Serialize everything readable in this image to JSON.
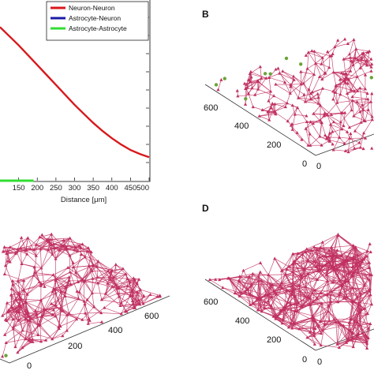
{
  "panels": {
    "b_label": "B",
    "d_label": "D"
  },
  "chart_data": [
    {
      "type": "line",
      "title": "",
      "xlabel": "Distance [μm]",
      "ylabel": "",
      "xlim": [
        100,
        500
      ],
      "x_ticks": [
        "150",
        "200",
        "250",
        "300",
        "350",
        "400",
        "450",
        "500"
      ],
      "legend": {
        "placement": "top-right",
        "entries": [
          {
            "name": "Neuron-Neuron",
            "color": "#d7191c"
          },
          {
            "name": "Astrocyte-Neuron",
            "color": "#1a1aa8"
          },
          {
            "name": "Astrocyte-Astrocyte",
            "color": "#33dd33"
          }
        ]
      },
      "series": [
        {
          "name": "Neuron-Neuron",
          "color": "#d7191c",
          "x": [
            100,
            125,
            150,
            175,
            200,
            225,
            250,
            275,
            300,
            325,
            350,
            375,
            400,
            425,
            450,
            475,
            500
          ],
          "y": [
            0.85,
            0.8,
            0.75,
            0.695,
            0.64,
            0.585,
            0.53,
            0.475,
            0.42,
            0.37,
            0.32,
            0.275,
            0.235,
            0.2,
            0.17,
            0.148,
            0.13
          ]
        },
        {
          "name": "Astrocyte-Astrocyte",
          "color": "#33dd33",
          "x": [
            100,
            150,
            190
          ],
          "y": [
            0,
            0,
            0
          ]
        }
      ]
    },
    {
      "type": "scatter",
      "panel": "B",
      "axis_ticks": [
        "0",
        "200",
        "400",
        "600",
        "0"
      ],
      "node_color": "#6aa33a",
      "edge_color": "#c03060"
    },
    {
      "type": "scatter",
      "panel": "C",
      "axis_ticks": [
        "200",
        "400",
        "600",
        "0"
      ],
      "node_color": "#6aa33a",
      "edge_color": "#c03060"
    },
    {
      "type": "scatter",
      "panel": "D",
      "axis_ticks": [
        "0",
        "200",
        "400",
        "600",
        "0"
      ],
      "node_color": "#6aa33a",
      "edge_color": "#c03060"
    }
  ]
}
